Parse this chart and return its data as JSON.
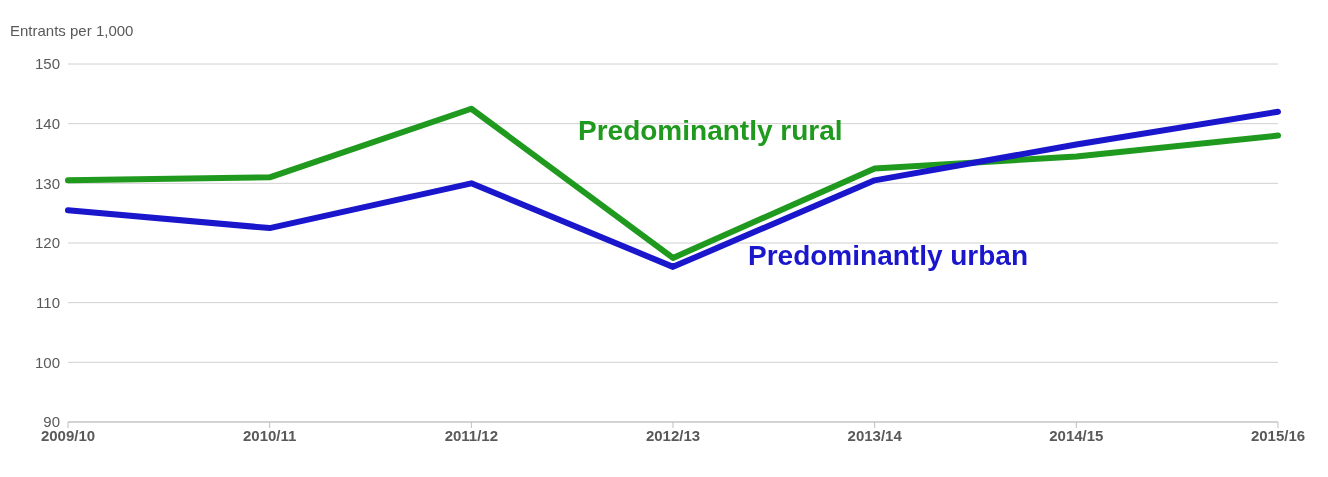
{
  "chart_data": {
    "type": "line",
    "ylabel": "Entrants per 1,000",
    "categories": [
      "2009/10",
      "2010/11",
      "2011/12",
      "2012/13",
      "2013/14",
      "2014/15",
      "2015/16"
    ],
    "series": [
      {
        "name": "Predominantly rural",
        "color": "#1f9a1f",
        "values": [
          130.5,
          131,
          142.5,
          117.5,
          132.5,
          134.5,
          138
        ]
      },
      {
        "name": "Predominantly urban",
        "color": "#1a16cc",
        "values": [
          125.5,
          122.5,
          130,
          116,
          130.5,
          136.5,
          142
        ]
      }
    ],
    "ylim": [
      90,
      150
    ],
    "yticks": [
      90,
      100,
      110,
      120,
      130,
      140,
      150
    ],
    "grid": "y",
    "marker": "none",
    "line_style": "solid"
  }
}
